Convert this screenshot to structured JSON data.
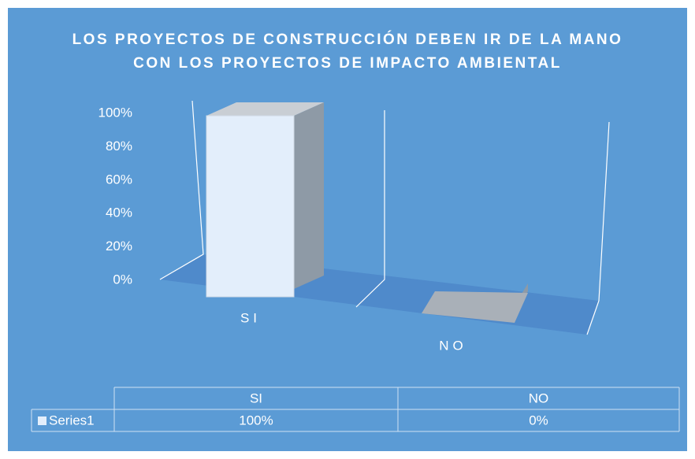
{
  "chart_data": {
    "type": "bar",
    "title": "LOS PROYECTOS DE CONSTRUCCIÓN DEBEN IR DE LA MANO CON LOS PROYECTOS DE IMPACTO AMBIENTAL",
    "categories": [
      "SI",
      "NO"
    ],
    "series": [
      {
        "name": "Series1",
        "color": "#e3eefb",
        "values": [
          100,
          0
        ],
        "value_labels": [
          "100%",
          "0%"
        ]
      }
    ],
    "ylim": [
      0,
      100
    ],
    "yticks": [
      {
        "value": 0,
        "label": "0%"
      },
      {
        "value": 20,
        "label": "20%"
      },
      {
        "value": 40,
        "label": "40%"
      },
      {
        "value": 60,
        "label": "60%"
      },
      {
        "value": 80,
        "label": "80%"
      },
      {
        "value": 100,
        "label": "100%"
      }
    ],
    "data_table": true
  }
}
